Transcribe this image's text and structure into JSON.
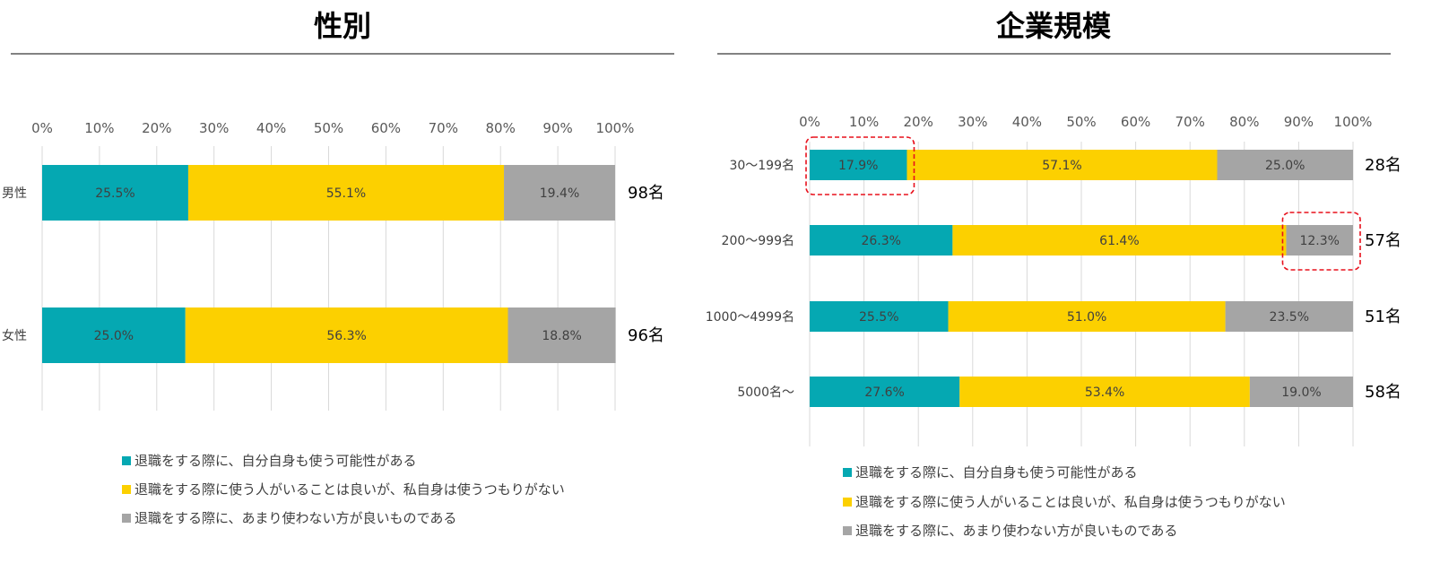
{
  "colors": {
    "series": [
      "#05A8B2",
      "#FCD000",
      "#A5A5A5"
    ],
    "grid": "#D9D9D9",
    "rule": "#595959",
    "highlight": "#E8101C"
  },
  "legend": [
    "退職をする際に、自分自身も使う可能性がある",
    "退職をする際に使う人がいることは良いが、私自身は使うつもりがない",
    "退職をする際に、あまり使わない方が良いものである"
  ],
  "chart_data": [
    {
      "type": "bar",
      "orientation": "horizontal",
      "stacked": true,
      "title": "性別",
      "xlim": [
        0,
        100
      ],
      "xticks": [
        "0%",
        "10%",
        "20%",
        "30%",
        "40%",
        "50%",
        "60%",
        "70%",
        "80%",
        "90%",
        "100%"
      ],
      "categories": [
        "男性",
        "女性"
      ],
      "counts": [
        "98名",
        "96名"
      ],
      "series": [
        {
          "name": "退職をする際に、自分自身も使う可能性がある",
          "values": [
            25.5,
            25.0
          ],
          "labels": [
            "25.5%",
            "25.0%"
          ]
        },
        {
          "name": "退職をする際に使う人がいることは良いが、私自身は使うつもりがない",
          "values": [
            55.1,
            56.3
          ],
          "labels": [
            "55.1%",
            "56.3%"
          ]
        },
        {
          "name": "退職をする際に、あまり使わない方が良いものである",
          "values": [
            19.4,
            18.8
          ],
          "labels": [
            "19.4%",
            "18.8%"
          ]
        }
      ],
      "gridlines": true,
      "legend_position": "bottom"
    },
    {
      "type": "bar",
      "orientation": "horizontal",
      "stacked": true,
      "title": "企業規模",
      "xlim": [
        0,
        100
      ],
      "xticks": [
        "0%",
        "10%",
        "20%",
        "30%",
        "40%",
        "50%",
        "60%",
        "70%",
        "80%",
        "90%",
        "100%"
      ],
      "categories": [
        "30～199名",
        "200～999名",
        "1000～4999名",
        "5000名～"
      ],
      "counts": [
        "28名",
        "57名",
        "51名",
        "58名"
      ],
      "series": [
        {
          "name": "退職をする際に、自分自身も使う可能性がある",
          "values": [
            17.9,
            26.3,
            25.5,
            27.6
          ],
          "labels": [
            "17.9%",
            "26.3%",
            "25.5%",
            "27.6%"
          ]
        },
        {
          "name": "退職をする際に使う人がいることは良いが、私自身は使うつもりがない",
          "values": [
            57.1,
            61.4,
            51.0,
            53.4
          ],
          "labels": [
            "57.1%",
            "61.4%",
            "51.0%",
            "53.4%"
          ]
        },
        {
          "name": "退職をする際に、あまり使わない方が良いものである",
          "values": [
            25.0,
            12.3,
            23.5,
            19.0
          ],
          "labels": [
            "25.0%",
            "12.3%",
            "23.5%",
            "19.0%"
          ]
        }
      ],
      "highlighted": [
        {
          "category": "30～199名",
          "series": 0
        },
        {
          "category": "200～999名",
          "series": 2
        }
      ],
      "gridlines": true,
      "legend_position": "bottom"
    }
  ]
}
